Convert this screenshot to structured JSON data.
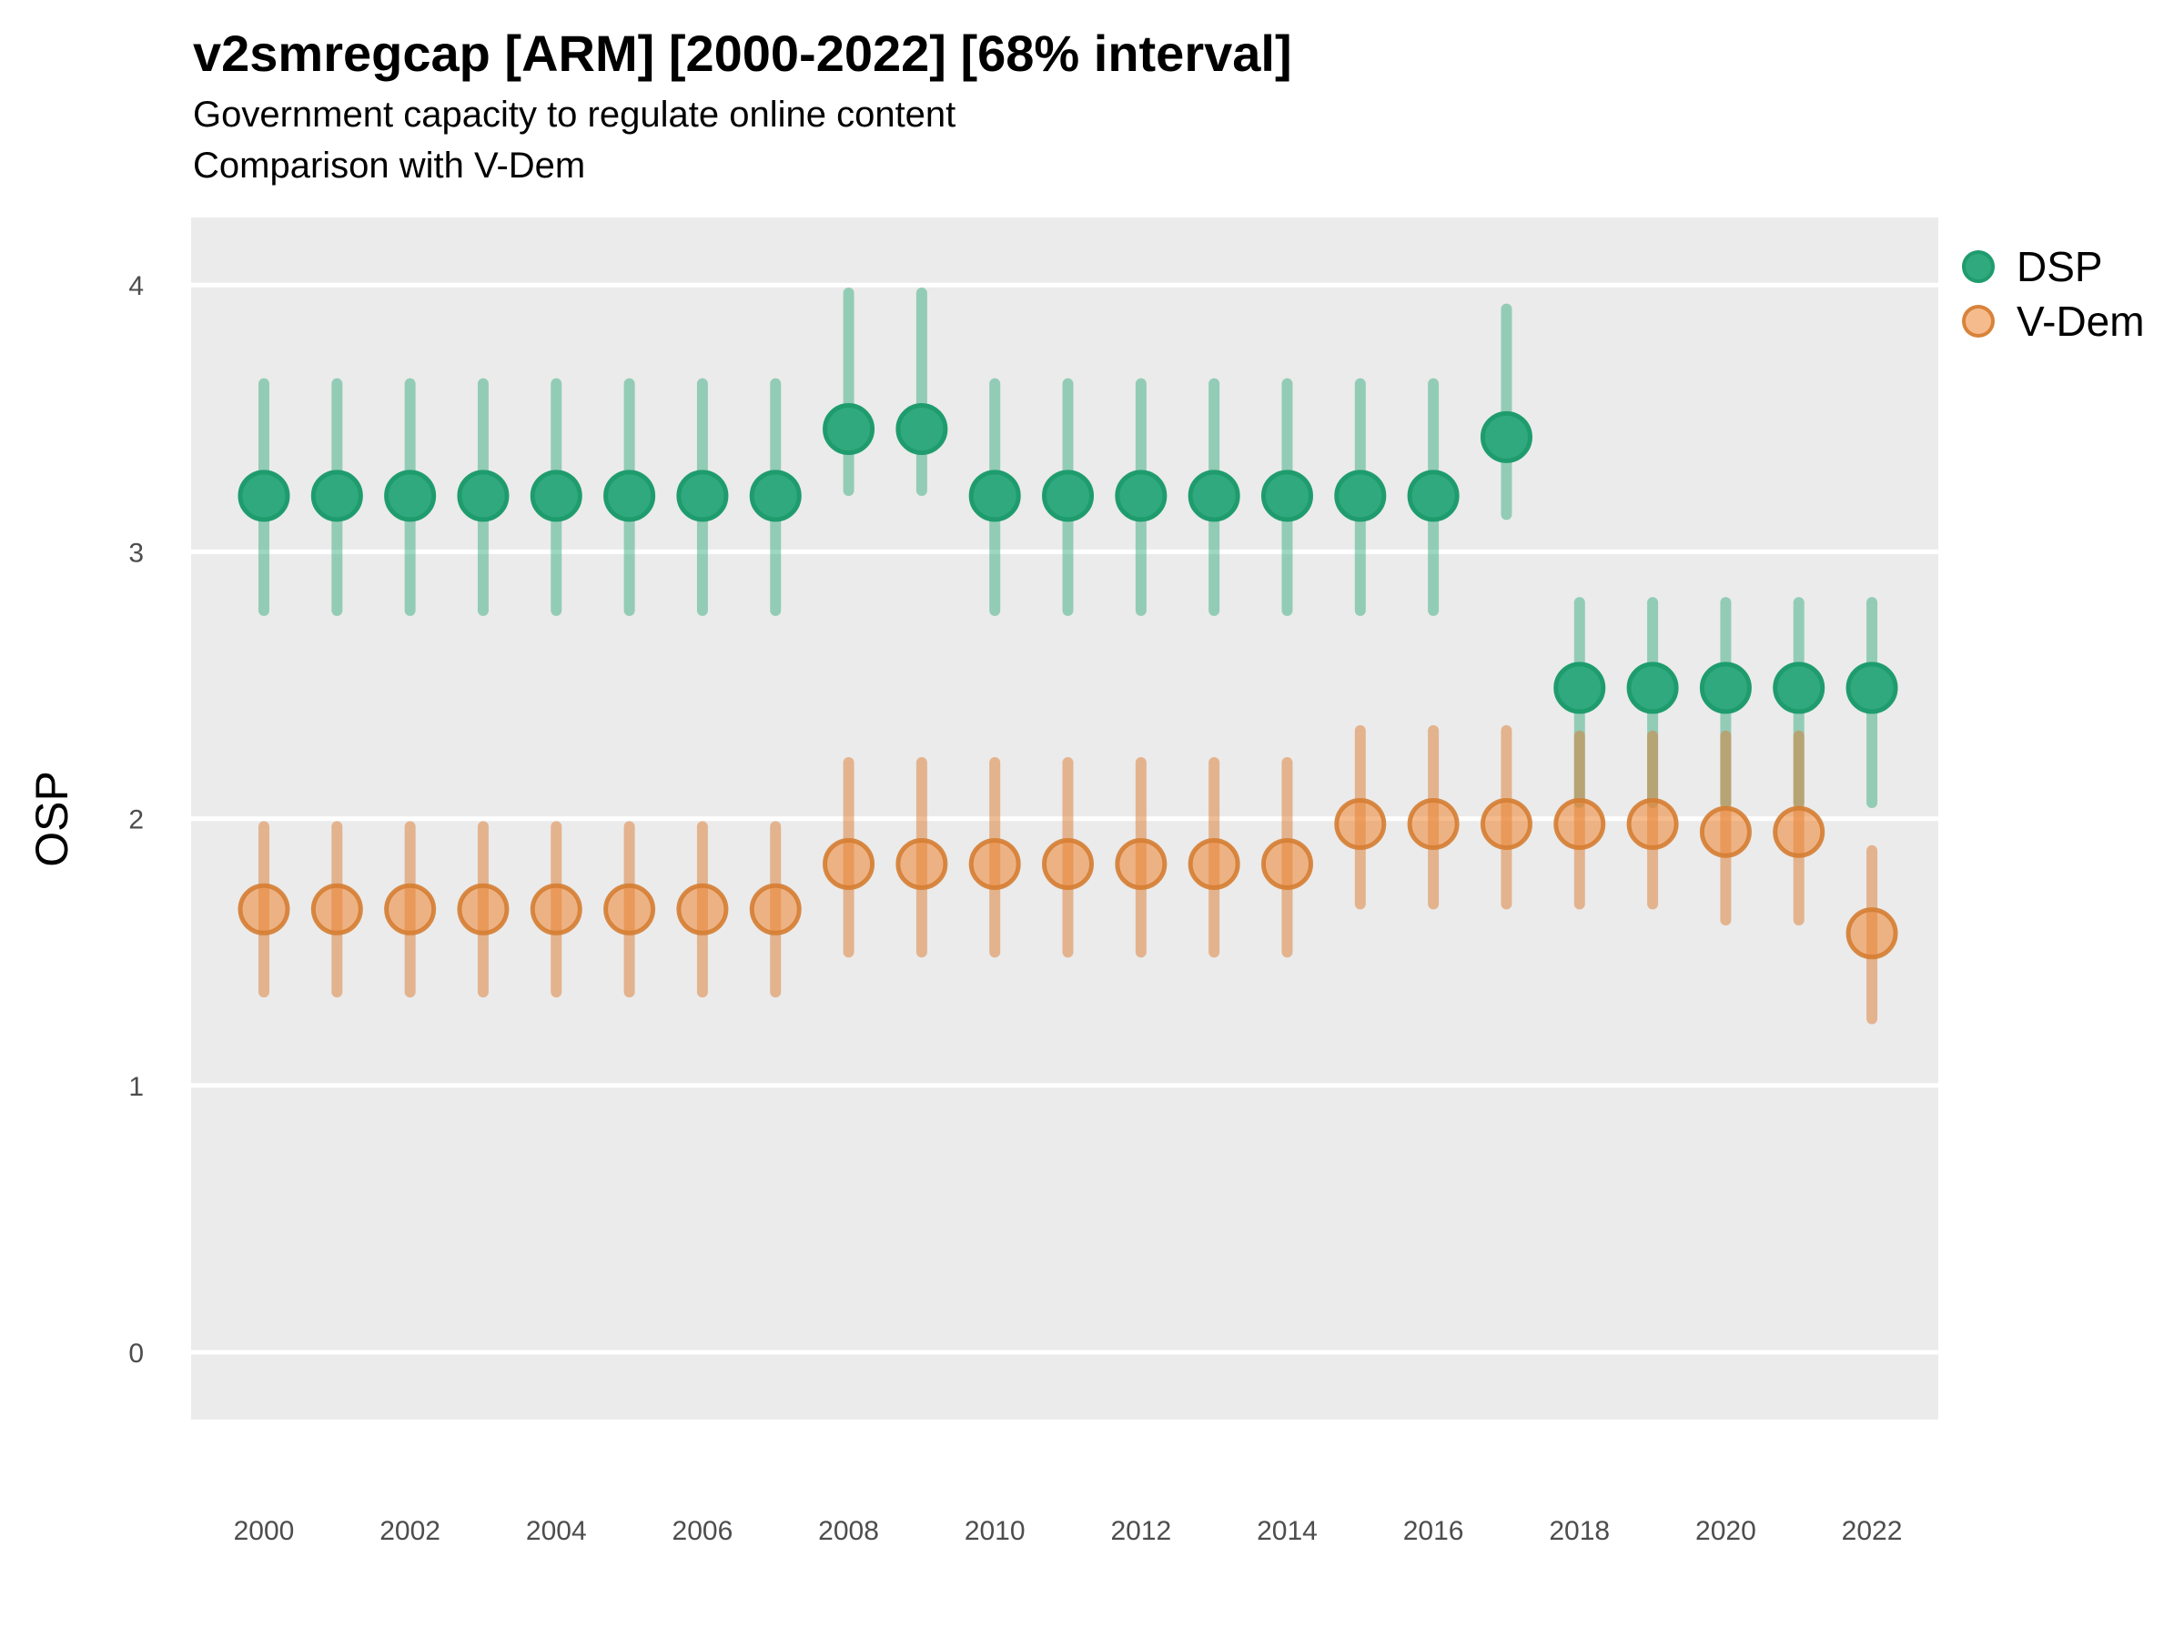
{
  "header": {
    "title": "v2smregcap [ARM] [2000-2022] [68% interval]",
    "subtitle": "Government capacity to regulate online content",
    "subtitle2": "Comparison with V-Dem"
  },
  "chart_data": {
    "type": "pointrange",
    "title": "v2smregcap [ARM] [2000-2022] [68% interval]",
    "subtitle": "Government capacity to regulate online content",
    "subtitle2": "Comparison with V-Dem",
    "xlabel": "",
    "ylabel": "OSP",
    "interval": "68% interval",
    "country": "ARM",
    "variable": "v2smregcap",
    "ylim": [
      -0.25,
      4.25
    ],
    "xlim": [
      1999,
      2023
    ],
    "yticks": [
      0,
      1,
      2,
      3,
      4
    ],
    "xticks": [
      2000,
      2002,
      2004,
      2006,
      2008,
      2010,
      2012,
      2014,
      2016,
      2018,
      2020,
      2022
    ],
    "grid": "horizontal major gridlines, white on grey panel",
    "legend_position": "top-right",
    "colors": {
      "panel_bg": "#EBEBEB",
      "grid": "#FFFFFF",
      "tick_text": "#4D4D4D",
      "dsp_green": "#2FA97D",
      "vdem_orange": "#EF8430"
    },
    "years": [
      2000,
      2001,
      2002,
      2003,
      2004,
      2005,
      2006,
      2007,
      2008,
      2009,
      2010,
      2011,
      2012,
      2013,
      2014,
      2015,
      2016,
      2017,
      2018,
      2019,
      2020,
      2021,
      2022
    ],
    "series": [
      {
        "name": "DSP",
        "line_color": "rgba(39,166,118,0.45)",
        "point_fill": "#2FA97D",
        "point_stroke": "#1F9C6E",
        "est": [
          3.21,
          3.21,
          3.21,
          3.21,
          3.21,
          3.21,
          3.21,
          3.21,
          3.46,
          3.46,
          3.21,
          3.21,
          3.21,
          3.21,
          3.21,
          3.21,
          3.21,
          3.43,
          2.49,
          2.49,
          2.49,
          2.49,
          2.49
        ],
        "lo": [
          2.78,
          2.78,
          2.78,
          2.78,
          2.78,
          2.78,
          2.78,
          2.78,
          3.23,
          3.23,
          2.78,
          2.78,
          2.78,
          2.78,
          2.78,
          2.78,
          2.78,
          3.14,
          2.06,
          2.06,
          2.06,
          2.06,
          2.06
        ],
        "hi": [
          3.63,
          3.63,
          3.63,
          3.63,
          3.63,
          3.63,
          3.63,
          3.63,
          3.97,
          3.97,
          3.63,
          3.63,
          3.63,
          3.63,
          3.63,
          3.63,
          3.63,
          3.91,
          2.81,
          2.81,
          2.81,
          2.81,
          2.81
        ]
      },
      {
        "name": "V-Dem",
        "line_color": "rgba(219,124,50,0.5)",
        "point_fill": "rgba(239,132,48,0.55)",
        "point_stroke": "rgba(213,125,50,0.9)",
        "est": [
          1.66,
          1.66,
          1.66,
          1.66,
          1.66,
          1.66,
          1.66,
          1.66,
          1.83,
          1.83,
          1.83,
          1.83,
          1.83,
          1.83,
          1.83,
          1.98,
          1.98,
          1.98,
          1.98,
          1.98,
          1.95,
          1.95,
          1.57
        ],
        "lo": [
          1.35,
          1.35,
          1.35,
          1.35,
          1.35,
          1.35,
          1.35,
          1.35,
          1.5,
          1.5,
          1.5,
          1.5,
          1.5,
          1.5,
          1.5,
          1.68,
          1.68,
          1.68,
          1.68,
          1.68,
          1.62,
          1.62,
          1.25
        ],
        "hi": [
          1.97,
          1.97,
          1.97,
          1.97,
          1.97,
          1.97,
          1.97,
          1.97,
          2.21,
          2.21,
          2.21,
          2.21,
          2.21,
          2.21,
          2.21,
          2.33,
          2.33,
          2.33,
          2.31,
          2.31,
          2.31,
          2.31,
          1.88
        ]
      }
    ]
  }
}
